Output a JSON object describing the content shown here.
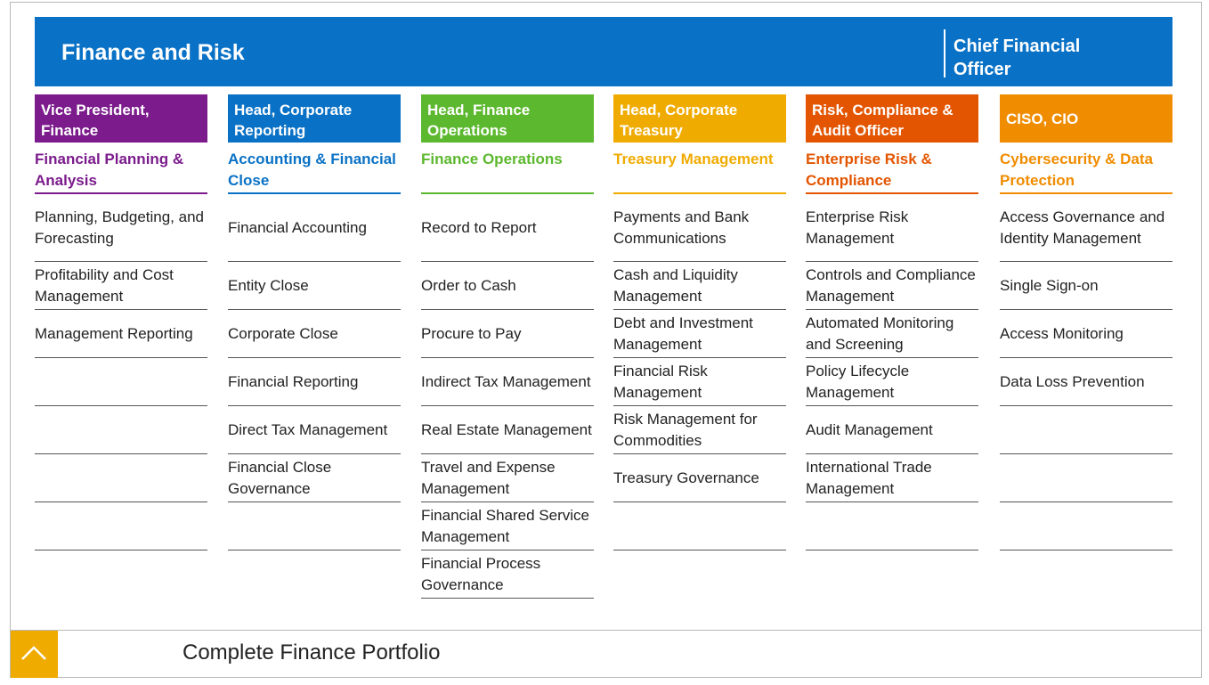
{
  "banner": {
    "title": "Finance and Risk",
    "right_title": "Chief Financial Officer"
  },
  "colors": {
    "banner": "#0a72c6",
    "purple": "#7b1b8c",
    "blue": "#0a72c6",
    "green": "#5cb82e",
    "yellow": "#f0ab00",
    "orange": "#e35500",
    "light_orange": "#f08c00"
  },
  "columns": [
    {
      "head": "Vice President, Finance",
      "sub": "Financial Planning & Analysis",
      "items": [
        "Planning, Budgeting, and Forecasting",
        "Profitability and Cost Management",
        "Management Reporting",
        "",
        "",
        "",
        ""
      ]
    },
    {
      "head": "Head, Corporate Reporting",
      "sub": "Accounting & Financial Close",
      "items": [
        "Financial Accounting",
        "Entity Close",
        "Corporate Close",
        "Financial Reporting",
        "Direct Tax Management",
        "Financial Close Governance",
        ""
      ]
    },
    {
      "head": "Head, Finance Operations",
      "sub": "Finance Operations",
      "items": [
        "Record to Report",
        "Order to Cash",
        "Procure to Pay",
        "Indirect Tax Management",
        "Real Estate Management",
        "Travel and Expense Management",
        "Financial Shared Service Management",
        "Financial Process Governance"
      ]
    },
    {
      "head": "Head, Corporate Treasury",
      "sub": "Treasury Management",
      "items": [
        "Payments and Bank Communications",
        "Cash and Liquidity Management",
        "Debt and Investment Management",
        "Financial Risk Management",
        "Risk Management for Commodities",
        "Treasury Governance",
        ""
      ]
    },
    {
      "head": "Risk, Compliance & Audit Officer",
      "sub": "Enterprise Risk & Compliance",
      "items": [
        "Enterprise Risk Management",
        "Controls and Compliance Management",
        "Automated Monitoring and Screening",
        "Policy Lifecycle Management",
        "Audit Management",
        "International Trade Management",
        ""
      ]
    },
    {
      "head": "CISO, CIO",
      "sub": "Cybersecurity & Data Protection",
      "items": [
        "Access Governance and Identity Management",
        "Single Sign-on",
        "Access Monitoring",
        "Data Loss Prevention",
        "",
        "",
        ""
      ]
    }
  ],
  "footer": {
    "title": "Complete Finance Portfolio",
    "icon": "chevron-up-icon"
  }
}
